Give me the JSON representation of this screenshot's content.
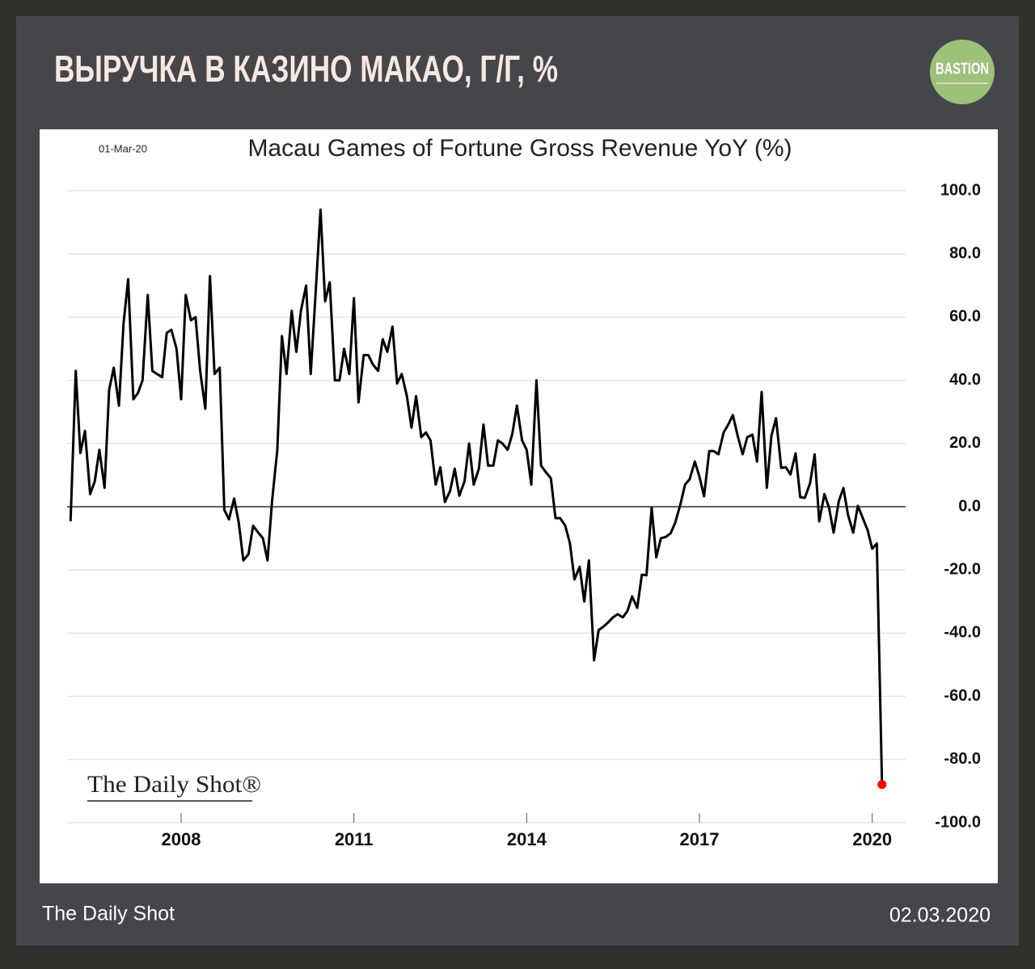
{
  "header": {
    "title": "ВЫРУЧКА В КАЗИНО МАКАО, Г/Г, %",
    "badge": "BASTION"
  },
  "footer": {
    "source": "The Daily Shot",
    "date": "02.03.2020"
  },
  "chart_data": {
    "type": "line",
    "title": "Macau Games of Fortune Gross Revenue YoY (%)",
    "note": "01-Mar-20",
    "watermark": "The Daily Shot®",
    "color": "#000000",
    "highlight_color": "#ff0000",
    "grid": true,
    "y_axis_side": "right",
    "xlim": [
      2006.02,
      2020.58
    ],
    "xticks": [
      2008,
      2011,
      2014,
      2017,
      2020
    ],
    "ylim": [
      -100,
      100
    ],
    "yticks": [
      {
        "value": -100,
        "label": "-100.0"
      },
      {
        "value": -80,
        "label": "-80.0"
      },
      {
        "value": -60,
        "label": "-60.0"
      },
      {
        "value": -40,
        "label": "-40.0"
      },
      {
        "value": -20,
        "label": "-20.0"
      },
      {
        "value": 0,
        "label": "0.0"
      },
      {
        "value": 20,
        "label": "20.0"
      },
      {
        "value": 40,
        "label": "40.0"
      },
      {
        "value": 60,
        "label": "60.0"
      },
      {
        "value": 80,
        "label": "80.0"
      },
      {
        "value": 100,
        "label": "100.0"
      }
    ],
    "x": [
      2006.08,
      2006.17,
      2006.25,
      2006.33,
      2006.42,
      2006.5,
      2006.58,
      2006.67,
      2006.75,
      2006.83,
      2006.92,
      2007,
      2007.08,
      2007.17,
      2007.25,
      2007.33,
      2007.42,
      2007.5,
      2007.58,
      2007.67,
      2007.75,
      2007.83,
      2007.92,
      2008,
      2008.08,
      2008.17,
      2008.25,
      2008.33,
      2008.42,
      2008.5,
      2008.58,
      2008.67,
      2008.75,
      2008.83,
      2008.92,
      2009,
      2009.08,
      2009.17,
      2009.25,
      2009.33,
      2009.42,
      2009.5,
      2009.58,
      2009.67,
      2009.75,
      2009.83,
      2009.92,
      2010,
      2010.08,
      2010.17,
      2010.25,
      2010.33,
      2010.42,
      2010.5,
      2010.58,
      2010.67,
      2010.75,
      2010.83,
      2010.92,
      2011,
      2011.08,
      2011.17,
      2011.25,
      2011.33,
      2011.42,
      2011.5,
      2011.58,
      2011.67,
      2011.75,
      2011.83,
      2011.92,
      2012,
      2012.08,
      2012.17,
      2012.25,
      2012.33,
      2012.42,
      2012.5,
      2012.58,
      2012.67,
      2012.75,
      2012.83,
      2012.92,
      2013,
      2013.08,
      2013.17,
      2013.25,
      2013.33,
      2013.42,
      2013.5,
      2013.58,
      2013.67,
      2013.75,
      2013.83,
      2013.92,
      2014,
      2014.08,
      2014.17,
      2014.25,
      2014.33,
      2014.42,
      2014.5,
      2014.58,
      2014.67,
      2014.75,
      2014.83,
      2014.92,
      2015,
      2015.08,
      2015.17,
      2015.25,
      2015.33,
      2015.42,
      2015.5,
      2015.58,
      2015.67,
      2015.75,
      2015.83,
      2015.92,
      2016,
      2016.08,
      2016.17,
      2016.25,
      2016.33,
      2016.42,
      2016.5,
      2016.58,
      2016.67,
      2016.75,
      2016.83,
      2016.92,
      2017,
      2017.08,
      2017.17,
      2017.25,
      2017.33,
      2017.42,
      2017.5,
      2017.58,
      2017.67,
      2017.75,
      2017.83,
      2017.92,
      2018,
      2018.08,
      2018.17,
      2018.25,
      2018.33,
      2018.42,
      2018.5,
      2018.58,
      2018.67,
      2018.75,
      2018.83,
      2018.92,
      2019,
      2019.08,
      2019.17,
      2019.25,
      2019.33,
      2019.42,
      2019.5,
      2019.58,
      2019.67,
      2019.75,
      2019.83,
      2019.92,
      2020,
      2020.08,
      2020.17
    ],
    "values": [
      -4.6,
      43,
      17,
      24,
      4,
      8,
      18,
      6,
      37,
      44,
      32,
      58,
      72,
      34,
      36,
      40,
      67,
      43,
      42,
      41,
      55,
      56,
      50,
      34,
      67,
      59,
      60,
      43,
      31,
      73,
      42,
      44,
      -1,
      -4,
      2.6,
      -5,
      -17,
      -15,
      -6,
      -8,
      -10,
      -17,
      2,
      18,
      54,
      42,
      62,
      49,
      62,
      70,
      42,
      66,
      94,
      65,
      71,
      40,
      40,
      50,
      42,
      66,
      33,
      48,
      48,
      45,
      43,
      53,
      49,
      57,
      39,
      42,
      35,
      25,
      35,
      22,
      23.5,
      21,
      7,
      12.5,
      1.5,
      5,
      12,
      3.5,
      8,
      20,
      7,
      12,
      26,
      13,
      13,
      21,
      20,
      18,
      23,
      32,
      21,
      18,
      7,
      40,
      13,
      11,
      9,
      -3.6,
      -3.6,
      -6,
      -11.5,
      -23,
      -19,
      -30,
      -17,
      -48.6,
      -39,
      -38,
      -36.5,
      -35,
      -34,
      -35,
      -33,
      -28.4,
      -32,
      -21.5,
      -21.7,
      -0.3,
      -16,
      -10,
      -9.5,
      -8.4,
      -5,
      0.8,
      7,
      8.7,
      14.3,
      9.5,
      3.3,
      17.6,
      17.6,
      16.6,
      23.5,
      26,
      29,
      22,
      16.6,
      22,
      22.8,
      14.3,
      36.3,
      6,
      22.5,
      28,
      12.3,
      12.5,
      10.2,
      16.9,
      3,
      2.8,
      7.4,
      16.6,
      -4.6,
      4,
      -0.3,
      -8.2,
      1.8,
      5.9,
      -2.6,
      -8.2,
      0.3,
      -3.3,
      -7.4,
      -13.3,
      -11.6,
      -87.9
    ]
  }
}
